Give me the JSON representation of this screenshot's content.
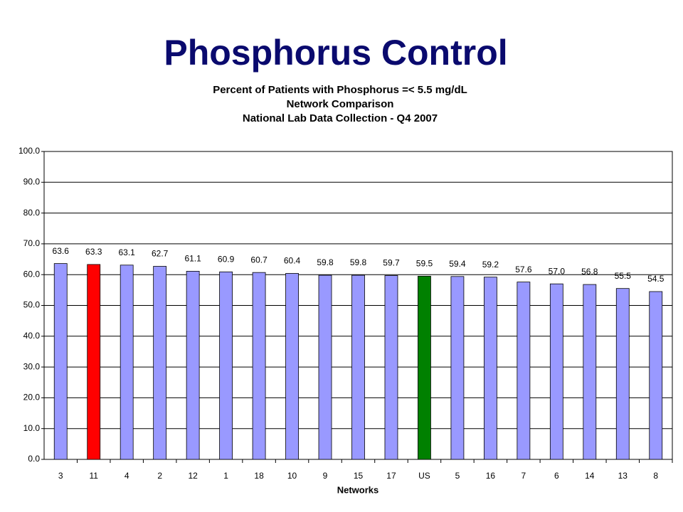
{
  "title": "Phosphorus Control",
  "chart_data": {
    "type": "bar",
    "title_lines": [
      "Percent of Patients with Phosphorus =< 5.5 mg/dL",
      "Network Comparison",
      "National Lab Data Collection - Q4 2007"
    ],
    "x_label": "Networks",
    "categories": [
      "3",
      "11",
      "4",
      "2",
      "12",
      "1",
      "18",
      "10",
      "9",
      "15",
      "17",
      "US",
      "5",
      "16",
      "7",
      "6",
      "14",
      "13",
      "8"
    ],
    "values": [
      63.6,
      63.3,
      63.1,
      62.7,
      61.1,
      60.9,
      60.7,
      60.4,
      59.8,
      59.8,
      59.7,
      59.5,
      59.4,
      59.2,
      57.6,
      57.0,
      56.8,
      55.5,
      54.5
    ],
    "value_labels": [
      "63.6",
      "63.3",
      "63.1",
      "62.7",
      "61.1",
      "60.9",
      "60.7",
      "60.4",
      "59.8",
      "59.8",
      "59.7",
      "59.5",
      "59.4",
      "59.2",
      "57.6",
      "57.0",
      "56.8",
      "55.5",
      "54.5"
    ],
    "colors": [
      "#9999ff",
      "#ff0000",
      "#9999ff",
      "#9999ff",
      "#9999ff",
      "#9999ff",
      "#9999ff",
      "#9999ff",
      "#9999ff",
      "#9999ff",
      "#9999ff",
      "#008000",
      "#9999ff",
      "#9999ff",
      "#9999ff",
      "#9999ff",
      "#9999ff",
      "#9999ff",
      "#9999ff"
    ],
    "ylim": [
      0,
      100
    ],
    "yticks": [
      {
        "value": 0,
        "label": "0.0"
      },
      {
        "value": 10,
        "label": "10.0"
      },
      {
        "value": 20,
        "label": "20.0"
      },
      {
        "value": 30,
        "label": "30.0"
      },
      {
        "value": 40,
        "label": "40.0"
      },
      {
        "value": 50,
        "label": "50.0"
      },
      {
        "value": 60,
        "label": "60.0"
      },
      {
        "value": 70,
        "label": "70.0"
      },
      {
        "value": 80,
        "label": "80.0"
      },
      {
        "value": 90,
        "label": "90.0"
      },
      {
        "value": 100,
        "label": "100.0"
      }
    ],
    "grid": true
  }
}
